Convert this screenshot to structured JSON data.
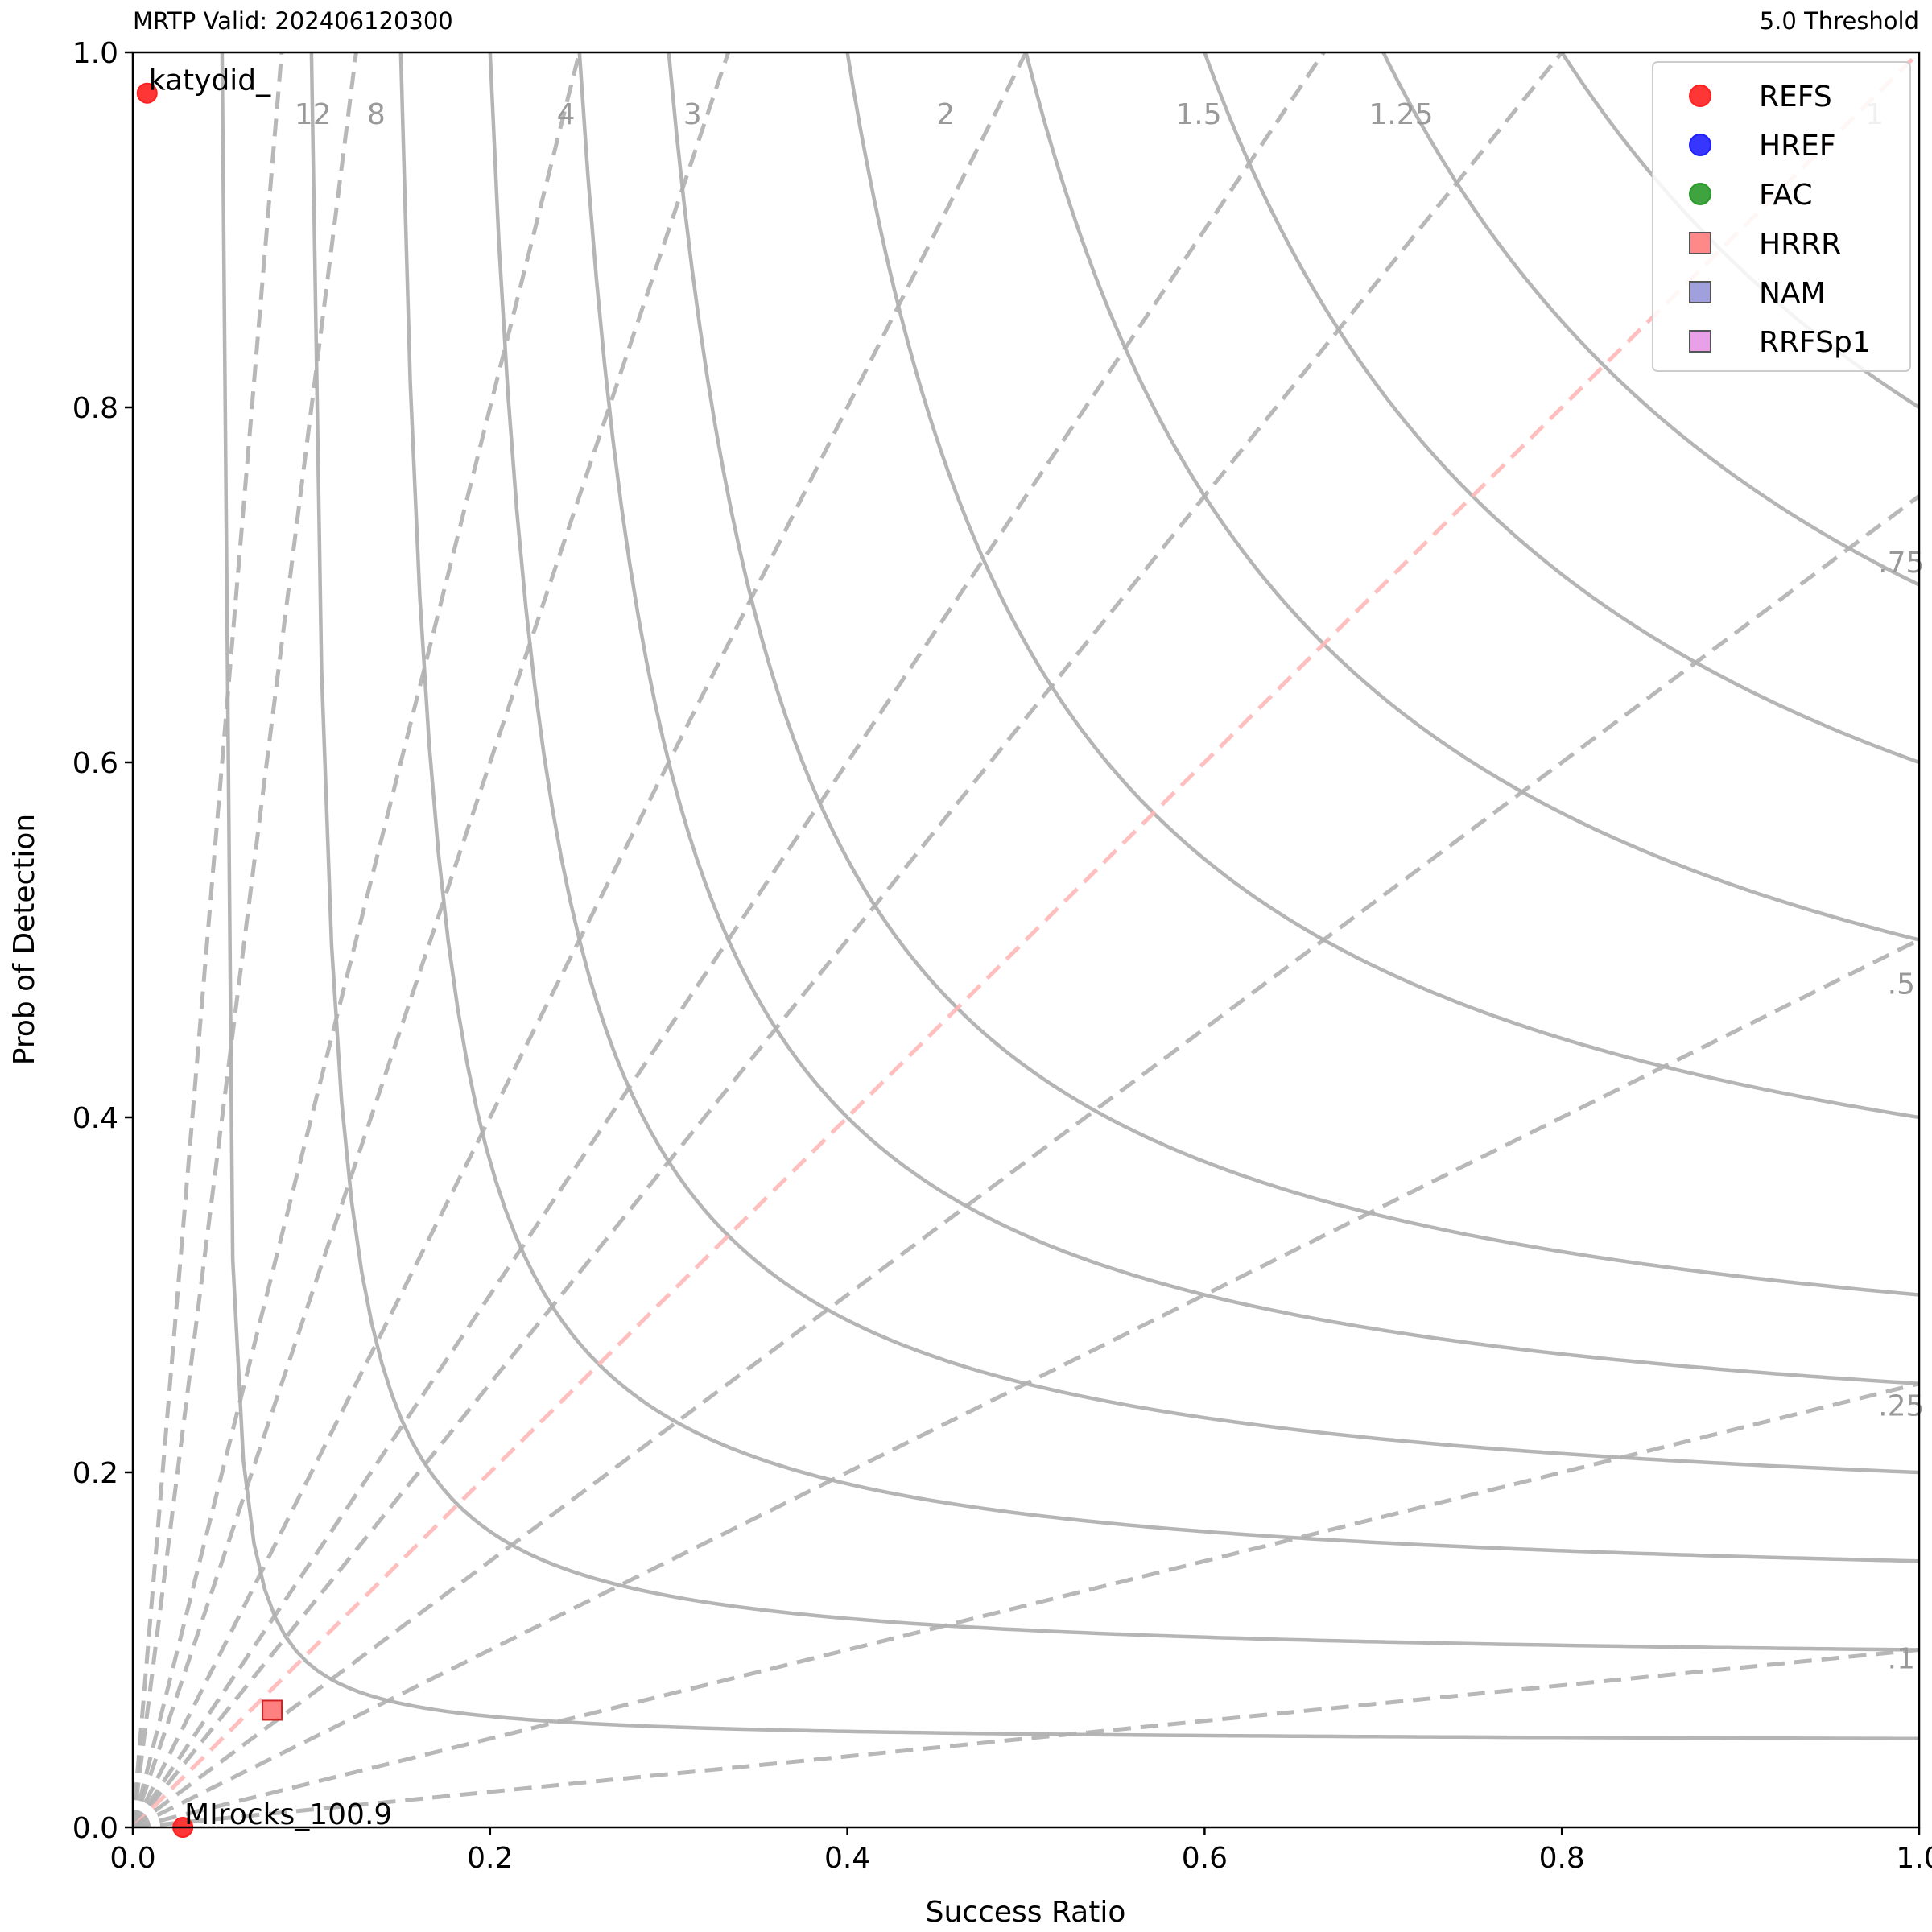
{
  "header": {
    "left_title": "MRTP Valid: 202406120300",
    "right_title": "5.0 Threshold"
  },
  "chart_data": {
    "type": "scatter",
    "subtype": "performance-diagram",
    "xlabel": "Success Ratio",
    "ylabel": "Prob of Detection",
    "xlim": [
      0,
      1
    ],
    "ylim": [
      0,
      1
    ],
    "x_ticks": [
      "0.0",
      "0.2",
      "0.4",
      "0.6",
      "0.8",
      "1.0"
    ],
    "y_ticks": [
      "0.0",
      "0.2",
      "0.4",
      "0.6",
      "0.8",
      "1.0"
    ],
    "grid": false,
    "legend_position": "top-right",
    "bias_lines": [
      {
        "value": 12,
        "label": "12"
      },
      {
        "value": 8,
        "label": "8"
      },
      {
        "value": 4,
        "label": "4"
      },
      {
        "value": 3,
        "label": "3"
      },
      {
        "value": 2,
        "label": "2"
      },
      {
        "value": 1.5,
        "label": "1.5"
      },
      {
        "value": 1.25,
        "label": "1.25"
      },
      {
        "value": 1,
        "label": "1"
      },
      {
        "value": 0.75,
        "label": ".75"
      },
      {
        "value": 0.5,
        "label": ".5"
      },
      {
        "value": 0.25,
        "label": ".25"
      },
      {
        "value": 0.1,
        "label": ".1"
      }
    ],
    "csi_contours": [
      0.05,
      0.1,
      0.15,
      0.2,
      0.25,
      0.3,
      0.4,
      0.5,
      0.6,
      0.7,
      0.8
    ],
    "series": [
      {
        "name": "REFS",
        "marker": "circle",
        "color": "#ff2020",
        "points": [
          {
            "x": 0.008,
            "y": 0.977,
            "annotation": "katydid_"
          },
          {
            "x": 0.028,
            "y": 0.0,
            "annotation": "MIrocks_100.9"
          }
        ]
      },
      {
        "name": "HREF",
        "marker": "circle",
        "color": "#2020ff",
        "points": []
      },
      {
        "name": "FAC",
        "marker": "circle",
        "color": "#2a9a2a",
        "points": []
      },
      {
        "name": "HRRR",
        "marker": "square",
        "color": "#ff6060",
        "points": [
          {
            "x": 0.078,
            "y": 0.066
          }
        ]
      },
      {
        "name": "NAM",
        "marker": "square",
        "color": "#8080d0",
        "points": []
      },
      {
        "name": "RRFSp1",
        "marker": "square",
        "color": "#e080e0",
        "points": []
      }
    ]
  }
}
